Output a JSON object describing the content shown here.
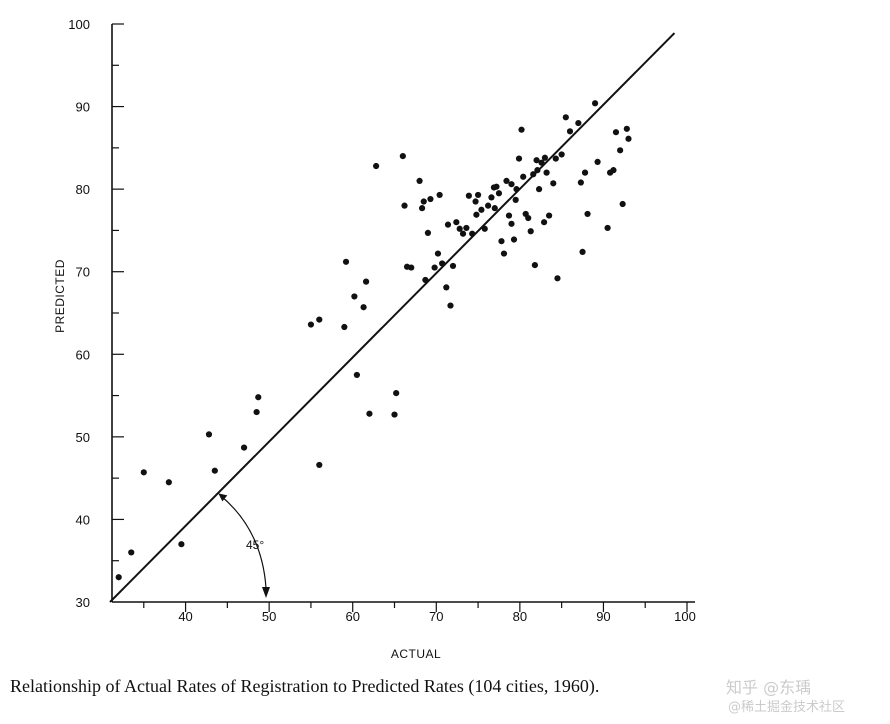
{
  "chart_data": {
    "type": "scatter",
    "title": "Relationship of Actual Rates of Registration to Predicted Rates (104 cities, 1960).",
    "xlabel": "ACTUAL",
    "ylabel": "PREDICTED",
    "xlim": [
      30,
      100
    ],
    "ylim": [
      30,
      100
    ],
    "xticks": [
      "40",
      "50",
      "60",
      "70",
      "80",
      "90",
      "100"
    ],
    "yticks": [
      "30",
      "40",
      "50",
      "60",
      "70",
      "80",
      "90",
      "100"
    ],
    "reference_line": {
      "label": "45°",
      "from": [
        30,
        30
      ],
      "to": [
        100,
        100
      ]
    },
    "marker_color": "#111111",
    "points": [
      [
        32.0,
        33.0
      ],
      [
        33.5,
        36.0
      ],
      [
        35.0,
        45.7
      ],
      [
        38.0,
        44.5
      ],
      [
        39.5,
        37.0
      ],
      [
        42.8,
        50.3
      ],
      [
        43.5,
        45.9
      ],
      [
        47.0,
        48.7
      ],
      [
        48.5,
        53.0
      ],
      [
        48.7,
        54.8
      ],
      [
        55.0,
        63.6
      ],
      [
        56.0,
        64.2
      ],
      [
        56.0,
        46.6
      ],
      [
        59.0,
        63.3
      ],
      [
        59.2,
        71.2
      ],
      [
        60.2,
        67.0
      ],
      [
        60.5,
        57.5
      ],
      [
        61.3,
        65.7
      ],
      [
        61.6,
        68.8
      ],
      [
        62.0,
        52.8
      ],
      [
        62.8,
        82.8
      ],
      [
        65.0,
        52.7
      ],
      [
        65.2,
        55.3
      ],
      [
        66.0,
        84.0
      ],
      [
        66.2,
        78.0
      ],
      [
        66.5,
        70.6
      ],
      [
        67.0,
        70.5
      ],
      [
        68.0,
        81.0
      ],
      [
        68.3,
        77.7
      ],
      [
        68.5,
        78.5
      ],
      [
        68.7,
        69.0
      ],
      [
        69.0,
        74.7
      ],
      [
        69.3,
        78.8
      ],
      [
        69.8,
        70.5
      ],
      [
        70.2,
        72.2
      ],
      [
        70.4,
        79.3
      ],
      [
        70.7,
        71.0
      ],
      [
        71.2,
        68.1
      ],
      [
        71.4,
        75.7
      ],
      [
        71.7,
        65.9
      ],
      [
        72.0,
        70.7
      ],
      [
        72.4,
        76.0
      ],
      [
        72.8,
        75.2
      ],
      [
        73.2,
        74.6
      ],
      [
        73.6,
        75.3
      ],
      [
        73.9,
        79.2
      ],
      [
        74.3,
        74.6
      ],
      [
        74.7,
        78.5
      ],
      [
        75.0,
        79.3
      ],
      [
        75.4,
        77.5
      ],
      [
        75.8,
        75.2
      ],
      [
        76.2,
        78.0
      ],
      [
        76.6,
        79.0
      ],
      [
        77.0,
        77.7
      ],
      [
        77.2,
        80.3
      ],
      [
        77.5,
        79.5
      ],
      [
        77.8,
        73.7
      ],
      [
        78.1,
        72.2
      ],
      [
        78.4,
        81.0
      ],
      [
        78.7,
        76.8
      ],
      [
        79.0,
        75.8
      ],
      [
        79.3,
        73.9
      ],
      [
        79.6,
        80.0
      ],
      [
        79.9,
        83.7
      ],
      [
        80.2,
        87.2
      ],
      [
        80.4,
        81.5
      ],
      [
        80.7,
        77.0
      ],
      [
        81.0,
        76.5
      ],
      [
        81.3,
        74.9
      ],
      [
        81.6,
        81.8
      ],
      [
        81.8,
        70.8
      ],
      [
        82.0,
        83.5
      ],
      [
        82.3,
        80.0
      ],
      [
        82.6,
        83.2
      ],
      [
        82.9,
        76.0
      ],
      [
        83.2,
        82.0
      ],
      [
        83.5,
        76.8
      ],
      [
        84.0,
        80.7
      ],
      [
        84.5,
        69.2
      ],
      [
        85.0,
        84.2
      ],
      [
        85.5,
        88.7
      ],
      [
        86.0,
        87.0
      ],
      [
        87.0,
        88.0
      ],
      [
        87.3,
        80.8
      ],
      [
        87.5,
        72.4
      ],
      [
        87.8,
        82.0
      ],
      [
        88.1,
        77.0
      ],
      [
        89.0,
        90.4
      ],
      [
        89.3,
        83.3
      ],
      [
        90.5,
        75.3
      ],
      [
        90.8,
        82.0
      ],
      [
        91.2,
        82.3
      ],
      [
        91.5,
        86.9
      ],
      [
        92.0,
        84.7
      ],
      [
        92.3,
        78.2
      ],
      [
        92.8,
        87.3
      ],
      [
        93.0,
        86.1
      ],
      [
        84.3,
        83.7
      ],
      [
        83.0,
        83.8
      ],
      [
        82.1,
        82.3
      ],
      [
        79.0,
        80.6
      ],
      [
        76.9,
        80.2
      ],
      [
        74.8,
        76.9
      ],
      [
        79.5,
        78.7
      ]
    ]
  },
  "watermark": {
    "line1": "知乎 @东瑀",
    "line2": "@稀土掘金技术社区"
  }
}
